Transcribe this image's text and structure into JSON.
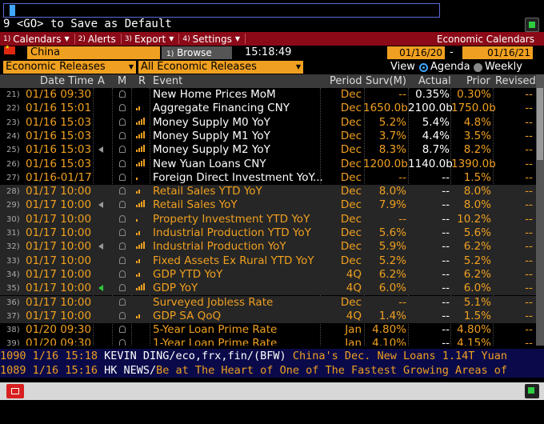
{
  "command": {
    "hint": "9 <GO> to Save as Default"
  },
  "menu": {
    "items": [
      {
        "num": "1)",
        "label": "Calendars"
      },
      {
        "num": "2)",
        "label": "Alerts"
      },
      {
        "num": "3)",
        "label": "Export"
      },
      {
        "num": "4)",
        "label": "Settings"
      }
    ],
    "title": "Economic Calendars"
  },
  "filters": {
    "country": "China",
    "browse_label": "Browse",
    "time": "15:18:49",
    "start_date": "01/16/20",
    "dash": "-",
    "end_date": "01/16/21",
    "releases": "Economic Releases",
    "category": "All Economic Releases",
    "view_label": "View",
    "agenda_label": "Agenda",
    "weekly_label": "Weekly",
    "selected_view": "Agenda"
  },
  "table": {
    "headers": {
      "datetime": "Date Time",
      "a": "A",
      "m": "M",
      "r": "R",
      "event": "Event",
      "period": "Period",
      "surv": "Surv(M)",
      "actual": "Actual",
      "prior": "Prior",
      "revised": "Revised"
    },
    "rows": [
      {
        "num": "21)",
        "date": "01/16 09:30",
        "alert": "",
        "rel": 0,
        "event": "New Home Prices MoM",
        "period": "Dec",
        "surv": "--",
        "actual": "0.35%",
        "prior": "0.30%",
        "revised": "--",
        "dim": false
      },
      {
        "num": "22)",
        "date": "01/16 15:01",
        "alert": "",
        "rel": 2,
        "event": "Aggregate Financing CNY",
        "period": "Dec",
        "surv": "1650.0b",
        "actual": "2100.0b",
        "prior": "1750.0b",
        "revised": "--",
        "dim": false
      },
      {
        "num": "23)",
        "date": "01/16 15:03",
        "alert": "",
        "rel": 4,
        "event": "Money Supply M0 YoY",
        "period": "Dec",
        "surv": "5.2%",
        "actual": "5.4%",
        "prior": "4.8%",
        "revised": "--",
        "dim": false
      },
      {
        "num": "24)",
        "date": "01/16 15:03",
        "alert": "",
        "rel": 4,
        "event": "Money Supply M1 YoY",
        "period": "Dec",
        "surv": "3.7%",
        "actual": "4.4%",
        "prior": "3.5%",
        "revised": "--",
        "dim": false
      },
      {
        "num": "25)",
        "date": "01/16 15:03",
        "alert": "speaker",
        "rel": 4,
        "event": "Money Supply M2 YoY",
        "period": "Dec",
        "surv": "8.3%",
        "actual": "8.7%",
        "prior": "8.2%",
        "revised": "--",
        "dim": false
      },
      {
        "num": "26)",
        "date": "01/16 15:03",
        "alert": "",
        "rel": 4,
        "event": "New Yuan Loans CNY",
        "period": "Dec",
        "surv": "1200.0b",
        "actual": "1140.0b",
        "prior": "1390.0b",
        "revised": "--",
        "dim": false
      },
      {
        "num": "27)",
        "date": "01/16-01/17",
        "alert": "",
        "rel": 1,
        "event": "Foreign Direct Investment YoY...",
        "period": "Dec",
        "surv": "--",
        "actual": "--",
        "prior": "1.5%",
        "revised": "--",
        "dim": false
      },
      {
        "num": "28)",
        "date": "01/17 10:00",
        "alert": "",
        "rel": 2,
        "event": "Retail Sales YTD YoY",
        "period": "Dec",
        "surv": "8.0%",
        "actual": "--",
        "prior": "8.0%",
        "revised": "--",
        "dim": true
      },
      {
        "num": "29)",
        "date": "01/17 10:00",
        "alert": "speaker",
        "rel": 4,
        "event": "Retail Sales YoY",
        "period": "Dec",
        "surv": "7.9%",
        "actual": "--",
        "prior": "8.0%",
        "revised": "--",
        "dim": true
      },
      {
        "num": "30)",
        "date": "01/17 10:00",
        "alert": "",
        "rel": 1,
        "event": "Property Investment YTD YoY",
        "period": "Dec",
        "surv": "--",
        "actual": "--",
        "prior": "10.2%",
        "revised": "--",
        "dim": true
      },
      {
        "num": "31)",
        "date": "01/17 10:00",
        "alert": "",
        "rel": 2,
        "event": "Industrial Production YTD YoY",
        "period": "Dec",
        "surv": "5.6%",
        "actual": "--",
        "prior": "5.6%",
        "revised": "--",
        "dim": true
      },
      {
        "num": "32)",
        "date": "01/17 10:00",
        "alert": "speaker",
        "rel": 4,
        "event": "Industrial Production YoY",
        "period": "Dec",
        "surv": "5.9%",
        "actual": "--",
        "prior": "6.2%",
        "revised": "--",
        "dim": true
      },
      {
        "num": "33)",
        "date": "01/17 10:00",
        "alert": "",
        "rel": 2,
        "event": "Fixed Assets Ex Rural YTD YoY",
        "period": "Dec",
        "surv": "5.2%",
        "actual": "--",
        "prior": "5.2%",
        "revised": "--",
        "dim": true
      },
      {
        "num": "34)",
        "date": "01/17 10:00",
        "alert": "",
        "rel": 2,
        "event": "GDP YTD YoY",
        "period": "4Q",
        "surv": "6.2%",
        "actual": "--",
        "prior": "6.2%",
        "revised": "--",
        "dim": true
      },
      {
        "num": "35)",
        "date": "01/17 10:00",
        "alert": "speaker-green",
        "rel": 4,
        "event": "GDP YoY",
        "period": "4Q",
        "surv": "6.0%",
        "actual": "--",
        "prior": "6.0%",
        "revised": "--",
        "dim": true
      },
      {
        "num": "36)",
        "date": "01/17 10:00",
        "alert": "",
        "rel": 0,
        "event": "Surveyed Jobless Rate",
        "period": "Dec",
        "surv": "--",
        "actual": "--",
        "prior": "5.1%",
        "revised": "--",
        "dim": true
      },
      {
        "num": "37)",
        "date": "01/17 10:00",
        "alert": "",
        "rel": 2,
        "event": "GDP SA QoQ",
        "period": "4Q",
        "surv": "1.4%",
        "actual": "--",
        "prior": "1.5%",
        "revised": "--",
        "dim": true
      },
      {
        "num": "38)",
        "date": "01/20 09:30",
        "alert": "",
        "rel": 0,
        "event": "5-Year Loan Prime Rate",
        "period": "Jan",
        "surv": "4.80%",
        "actual": "--",
        "prior": "4.80%",
        "revised": "--",
        "dim": false
      },
      {
        "num": "39)",
        "date": "01/20 09:30",
        "alert": "",
        "rel": 0,
        "event": "1-Year Loan Prime Rate",
        "period": "Jan",
        "surv": "4.10%",
        "actual": "--",
        "prior": "4.15%",
        "revised": "--",
        "dim": false
      }
    ]
  },
  "news": [
    {
      "id": "1090",
      "date": "1/16",
      "time": "15:18",
      "source": "KEVIN DING",
      "tags": "/eco,frx,fin/(BFW)",
      "text": " China's Dec. New Loans 1.14T Yuan"
    },
    {
      "id": "1089",
      "date": "1/16",
      "time": "15:16",
      "source": "HK NEWS",
      "tags": "/",
      "text": "Be at The Heart of One of The Fastest Growing Areas of"
    }
  ],
  "colors": {
    "accent": "#f0a020",
    "menu_bg": "#8c0a18",
    "news_bg": "#0a0a4a"
  }
}
